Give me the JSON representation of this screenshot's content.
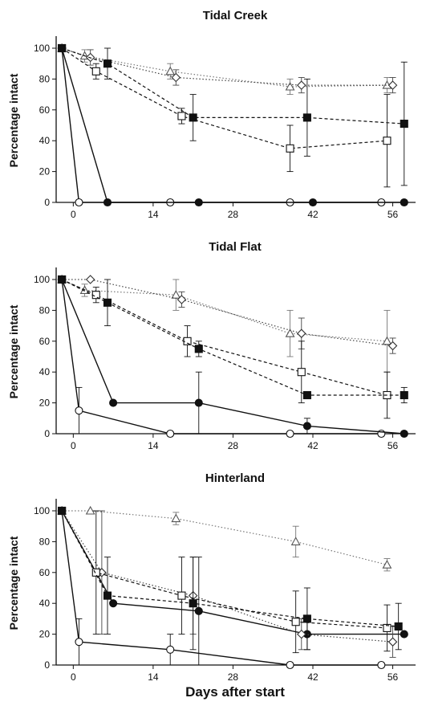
{
  "figure": {
    "xlabel": "Days after start"
  },
  "styles": {
    "open_circle": {
      "marker": "circle",
      "filled": false,
      "line": "solid",
      "color": "#111111"
    },
    "filled_circle": {
      "marker": "circle",
      "filled": true,
      "line": "solid",
      "color": "#111111"
    },
    "open_square": {
      "marker": "square",
      "filled": false,
      "line": "dashed",
      "color": "#111111"
    },
    "filled_square": {
      "marker": "square",
      "filled": true,
      "line": "dashed",
      "color": "#111111"
    },
    "open_triangle": {
      "marker": "triangle",
      "filled": false,
      "line": "dotted",
      "color": "#777777"
    },
    "open_diamond": {
      "marker": "diamond",
      "filled": false,
      "line": "dotted",
      "color": "#444444"
    }
  },
  "chart_data": [
    {
      "type": "line",
      "title": "Tidal Creek",
      "xlabel": "",
      "ylabel": "Percentage intact",
      "xlim": [
        -3,
        60
      ],
      "ylim": [
        0,
        100
      ],
      "xticks": [
        0,
        14,
        28,
        42,
        56
      ],
      "yticks": [
        0,
        20,
        40,
        60,
        80,
        100
      ],
      "series": [
        {
          "style": "open_circle",
          "points": [
            [
              -2,
              100,
              0
            ],
            [
              1,
              0,
              0
            ],
            [
              17,
              0,
              0
            ],
            [
              38,
              0,
              0
            ],
            [
              54,
              0,
              0
            ]
          ]
        },
        {
          "style": "filled_circle",
          "points": [
            [
              -2,
              100,
              0
            ],
            [
              6,
              0,
              0
            ],
            [
              22,
              0,
              0
            ],
            [
              42,
              0,
              0
            ],
            [
              58,
              0,
              0
            ]
          ]
        },
        {
          "style": "open_triangle",
          "points": [
            [
              -2,
              100,
              0
            ],
            [
              2,
              95,
              4
            ],
            [
              17,
              85,
              5
            ],
            [
              38,
              75,
              5
            ],
            [
              55,
              76,
              5
            ]
          ]
        },
        {
          "style": "open_diamond",
          "points": [
            [
              -2,
              100,
              0
            ],
            [
              3,
              94,
              5
            ],
            [
              18,
              81,
              5
            ],
            [
              40,
              76,
              5
            ],
            [
              56,
              76,
              5
            ]
          ]
        },
        {
          "style": "open_square",
          "points": [
            [
              -2,
              100,
              0
            ],
            [
              4,
              85,
              5
            ],
            [
              19,
              56,
              5
            ],
            [
              38,
              35,
              15
            ],
            [
              55,
              40,
              30
            ]
          ]
        },
        {
          "style": "filled_square",
          "points": [
            [
              -2,
              100,
              0
            ],
            [
              6,
              90,
              10
            ],
            [
              21,
              55,
              15
            ],
            [
              41,
              55,
              25
            ],
            [
              58,
              51,
              40
            ]
          ]
        }
      ]
    },
    {
      "type": "line",
      "title": "Tidal Flat",
      "xlabel": "",
      "ylabel": "Percentage intact",
      "xlim": [
        -3,
        60
      ],
      "ylim": [
        0,
        100
      ],
      "xticks": [
        0,
        14,
        28,
        42,
        56
      ],
      "yticks": [
        0,
        20,
        40,
        60,
        80,
        100
      ],
      "series": [
        {
          "style": "open_circle",
          "points": [
            [
              -2,
              100,
              0
            ],
            [
              1,
              15,
              15
            ],
            [
              17,
              0,
              0
            ],
            [
              38,
              0,
              0
            ],
            [
              54,
              0,
              0
            ]
          ]
        },
        {
          "style": "filled_circle",
          "points": [
            [
              -2,
              100,
              0
            ],
            [
              7,
              20,
              0
            ],
            [
              22,
              20,
              20
            ],
            [
              41,
              5,
              5
            ],
            [
              58,
              0,
              0
            ]
          ]
        },
        {
          "style": "open_triangle",
          "points": [
            [
              -2,
              100,
              0
            ],
            [
              2,
              93,
              4
            ],
            [
              18,
              90,
              10
            ],
            [
              38,
              65,
              15
            ],
            [
              55,
              60,
              20
            ]
          ]
        },
        {
          "style": "open_diamond",
          "points": [
            [
              -2,
              100,
              0
            ],
            [
              3,
              100,
              0
            ],
            [
              19,
              87,
              5
            ],
            [
              40,
              65,
              10
            ],
            [
              56,
              57,
              5
            ]
          ]
        },
        {
          "style": "open_square",
          "points": [
            [
              -2,
              100,
              0
            ],
            [
              4,
              90,
              5
            ],
            [
              20,
              60,
              10
            ],
            [
              40,
              40,
              20
            ],
            [
              55,
              25,
              15
            ]
          ]
        },
        {
          "style": "filled_square",
          "points": [
            [
              -2,
              100,
              0
            ],
            [
              6,
              85,
              15
            ],
            [
              22,
              55,
              5
            ],
            [
              41,
              25,
              0
            ],
            [
              58,
              25,
              5
            ]
          ]
        }
      ]
    },
    {
      "type": "line",
      "title": "Hinterland",
      "xlabel": "Days after start",
      "ylabel": "Percentage intact",
      "xlim": [
        -3,
        60
      ],
      "ylim": [
        0,
        100
      ],
      "xticks": [
        0,
        14,
        28,
        42,
        56
      ],
      "yticks": [
        0,
        20,
        40,
        60,
        80,
        100
      ],
      "series": [
        {
          "style": "open_circle",
          "points": [
            [
              -2,
              100,
              0
            ],
            [
              1,
              15,
              15
            ],
            [
              17,
              10,
              10
            ],
            [
              38,
              0,
              0
            ],
            [
              54,
              0,
              0
            ]
          ]
        },
        {
          "style": "filled_circle",
          "points": [
            [
              -2,
              100,
              0
            ],
            [
              7,
              40,
              0
            ],
            [
              22,
              35,
              35
            ],
            [
              41,
              20,
              10
            ],
            [
              58,
              20,
              0
            ]
          ]
        },
        {
          "style": "open_triangle",
          "points": [
            [
              -2,
              100,
              0
            ],
            [
              3,
              100,
              0
            ],
            [
              18,
              95,
              4
            ],
            [
              39,
              80,
              10
            ],
            [
              55,
              65,
              4
            ]
          ]
        },
        {
          "style": "open_diamond",
          "points": [
            [
              -2,
              100,
              0
            ],
            [
              5,
              60,
              40
            ],
            [
              21,
              45,
              25
            ],
            [
              40,
              20,
              10
            ],
            [
              56,
              15,
              10
            ]
          ]
        },
        {
          "style": "open_square",
          "points": [
            [
              -2,
              100,
              0
            ],
            [
              4,
              60,
              40
            ],
            [
              19,
              45,
              25
            ],
            [
              39,
              28,
              20
            ],
            [
              55,
              24,
              15
            ]
          ]
        },
        {
          "style": "filled_square",
          "points": [
            [
              -2,
              100,
              0
            ],
            [
              6,
              45,
              25
            ],
            [
              21,
              40,
              30
            ],
            [
              41,
              30,
              20
            ],
            [
              57,
              25,
              15
            ]
          ]
        }
      ]
    }
  ]
}
